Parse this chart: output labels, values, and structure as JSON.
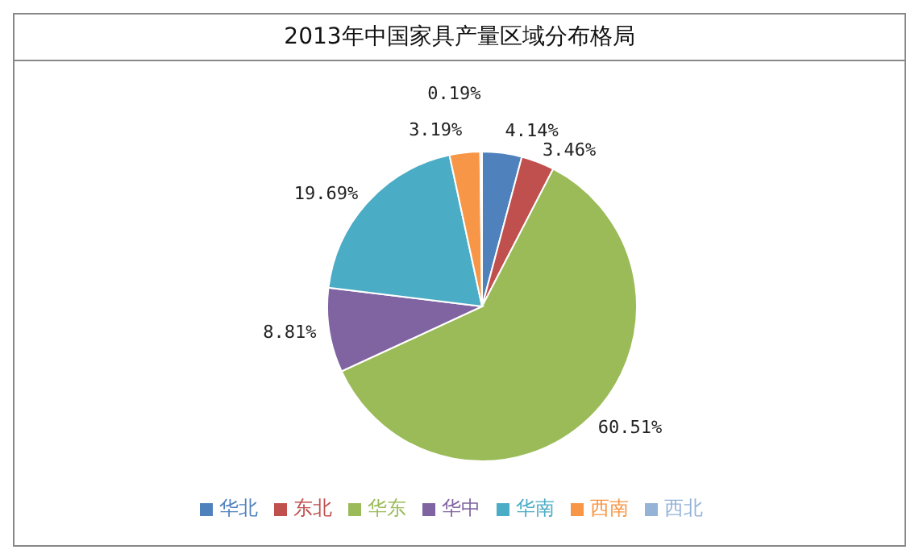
{
  "chart_data": {
    "type": "pie",
    "title": "2013年中国家具产量区域分布格局",
    "categories": [
      "华北",
      "东北",
      "华东",
      "华中",
      "华南",
      "西南",
      "西北"
    ],
    "values": [
      4.14,
      3.46,
      60.51,
      8.81,
      19.69,
      3.19,
      0.19
    ],
    "colors": [
      "#4f81bd",
      "#c0504d",
      "#9bbb59",
      "#8064a2",
      "#4bacc6",
      "#f79646",
      "#95b3d7"
    ],
    "value_labels": [
      "4.14%",
      "3.46%",
      "60.51%",
      "8.81%",
      "19.69%",
      "3.19%",
      "0.19%"
    ],
    "legend": "bottom"
  }
}
